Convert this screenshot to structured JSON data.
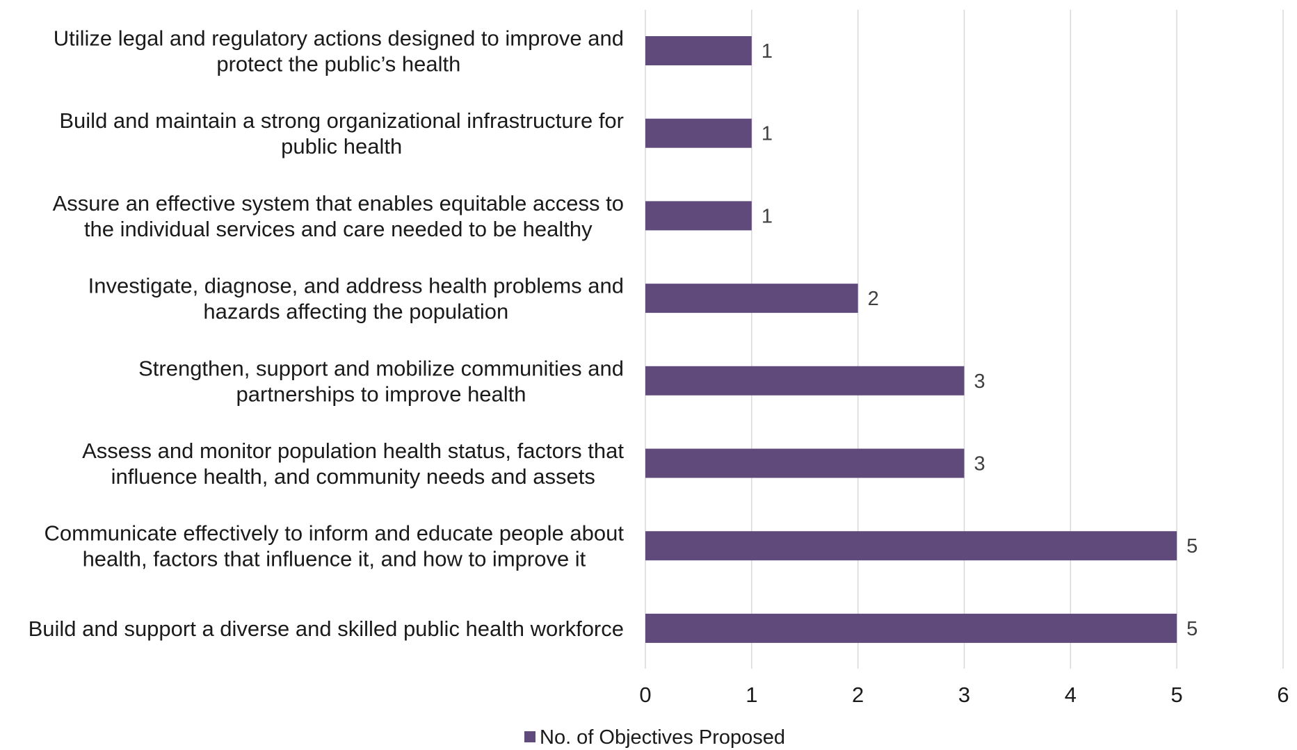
{
  "chart_data": {
    "type": "bar",
    "orientation": "horizontal",
    "categories": [
      [
        "Utilize legal and regulatory actions designed to improve and",
        "protect the public’s health"
      ],
      [
        "Build and maintain a strong organizational infrastructure for",
        "public health"
      ],
      [
        "Assure an effective system that enables equitable access to",
        "the individual services and care needed to be healthy"
      ],
      [
        "Investigate, diagnose, and address health problems and",
        "hazards affecting the population"
      ],
      [
        "Strengthen, support and mobilize communities and",
        "partnerships to improve health"
      ],
      [
        "Assess and monitor population health status, factors that",
        "influence health, and community needs and assets"
      ],
      [
        "Communicate effectively to inform and educate people about",
        "health, factors that influence it, and how to improve it"
      ],
      [
        "Build and support a diverse and skilled public health workforce"
      ]
    ],
    "series": [
      {
        "name": "No. of Objectives Proposed",
        "values": [
          1,
          1,
          1,
          2,
          3,
          3,
          5,
          5
        ],
        "color": "#604a7b"
      }
    ],
    "data_labels": [
      "1",
      "1",
      "1",
      "2",
      "3",
      "3",
      "5",
      "5"
    ],
    "xlim": [
      0,
      6
    ],
    "x_ticks": [
      0,
      1,
      2,
      3,
      4,
      5,
      6
    ],
    "x_tick_labels": [
      "0",
      "1",
      "2",
      "3",
      "4",
      "5",
      "6"
    ],
    "grid": true,
    "grid_color": "#d9d9d9",
    "legend_position": "bottom",
    "title": "",
    "xlabel": "",
    "ylabel": ""
  }
}
